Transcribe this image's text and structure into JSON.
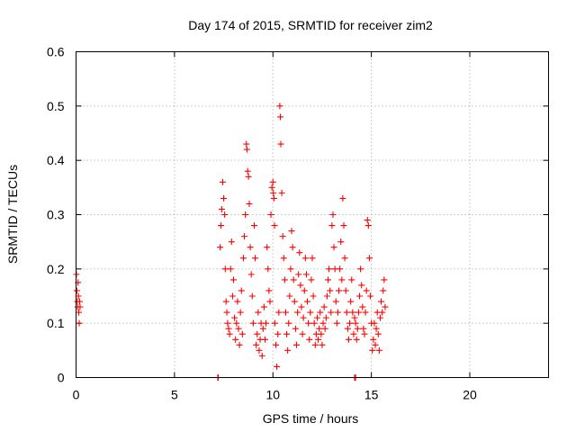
{
  "chart_data": {
    "type": "scatter",
    "title": "Day 174 of 2015, SRMTID for receiver zim2",
    "xlabel": "GPS time / hours",
    "ylabel": "SRMTID / TECUs",
    "xlim": [
      0,
      24
    ],
    "ylim": [
      0,
      0.6
    ],
    "xticks": [
      0,
      5,
      10,
      15,
      20
    ],
    "yticks": [
      0,
      0.1,
      0.2,
      0.3,
      0.4,
      0.5,
      0.6
    ],
    "xtick_labels": [
      "0",
      "5",
      "10",
      "15",
      "20"
    ],
    "ytick_labels": [
      "0",
      "0.1",
      "0.2",
      "0.3",
      "0.4",
      "0.5",
      "0.6"
    ],
    "grid": true,
    "marker": "plus",
    "color": "#ff0000",
    "series": [
      {
        "points": [
          [
            0.02,
            0.19
          ],
          [
            0.04,
            0.16
          ],
          [
            0.06,
            0.14
          ],
          [
            0.08,
            0.13
          ],
          [
            0.1,
            0.175
          ],
          [
            0.12,
            0.15
          ],
          [
            0.14,
            0.12
          ],
          [
            0.16,
            0.1
          ],
          [
            0.18,
            0.14
          ],
          [
            0.2,
            0.13
          ],
          [
            7.2,
            0.0
          ],
          [
            7.22,
            0.0
          ],
          [
            14.15,
            0.0
          ],
          [
            14.2,
            0.0
          ],
          [
            7.32,
            0.24
          ],
          [
            7.36,
            0.28
          ],
          [
            7.4,
            0.31
          ],
          [
            7.45,
            0.36
          ],
          [
            7.5,
            0.33
          ],
          [
            7.55,
            0.3
          ],
          [
            7.58,
            0.2
          ],
          [
            7.62,
            0.14
          ],
          [
            7.66,
            0.12
          ],
          [
            7.7,
            0.1
          ],
          [
            7.75,
            0.09
          ],
          [
            7.8,
            0.08
          ],
          [
            7.85,
            0.2
          ],
          [
            7.9,
            0.25
          ],
          [
            7.95,
            0.15
          ],
          [
            8.0,
            0.18
          ],
          [
            8.05,
            0.11
          ],
          [
            8.1,
            0.07
          ],
          [
            8.15,
            0.1
          ],
          [
            8.2,
            0.14
          ],
          [
            8.25,
            0.09
          ],
          [
            8.3,
            0.06
          ],
          [
            8.35,
            0.12
          ],
          [
            8.4,
            0.16
          ],
          [
            8.45,
            0.08
          ],
          [
            8.5,
            0.22
          ],
          [
            8.55,
            0.26
          ],
          [
            8.6,
            0.3
          ],
          [
            8.65,
            0.43
          ],
          [
            8.68,
            0.42
          ],
          [
            8.72,
            0.38
          ],
          [
            8.76,
            0.37
          ],
          [
            8.8,
            0.32
          ],
          [
            8.85,
            0.24
          ],
          [
            8.9,
            0.19
          ],
          [
            8.95,
            0.15
          ],
          [
            9.0,
            0.1
          ],
          [
            9.05,
            0.28
          ],
          [
            9.1,
            0.22
          ],
          [
            9.15,
            0.06
          ],
          [
            9.2,
            0.08
          ],
          [
            9.25,
            0.12
          ],
          [
            9.3,
            0.05
          ],
          [
            9.35,
            0.07
          ],
          [
            9.4,
            0.1
          ],
          [
            9.45,
            0.04
          ],
          [
            9.5,
            0.09
          ],
          [
            9.55,
            0.13
          ],
          [
            9.6,
            0.07
          ],
          [
            9.65,
            0.1
          ],
          [
            9.7,
            0.24
          ],
          [
            9.75,
            0.2
          ],
          [
            9.8,
            0.16
          ],
          [
            9.85,
            0.14
          ],
          [
            9.9,
            0.3
          ],
          [
            9.95,
            0.35
          ],
          [
            10.0,
            0.36
          ],
          [
            10.02,
            0.34
          ],
          [
            10.05,
            0.33
          ],
          [
            10.08,
            0.28
          ],
          [
            10.1,
            0.1
          ],
          [
            10.15,
            0.06
          ],
          [
            10.2,
            0.02
          ],
          [
            10.25,
            0.08
          ],
          [
            10.3,
            0.12
          ],
          [
            10.35,
            0.5
          ],
          [
            10.38,
            0.48
          ],
          [
            10.4,
            0.43
          ],
          [
            10.45,
            0.34
          ],
          [
            10.5,
            0.26
          ],
          [
            10.55,
            0.22
          ],
          [
            10.6,
            0.18
          ],
          [
            10.65,
            0.12
          ],
          [
            10.7,
            0.08
          ],
          [
            10.75,
            0.05
          ],
          [
            10.8,
            0.1
          ],
          [
            10.85,
            0.15
          ],
          [
            10.9,
            0.2
          ],
          [
            10.95,
            0.27
          ],
          [
            11.0,
            0.24
          ],
          [
            11.05,
            0.18
          ],
          [
            11.1,
            0.14
          ],
          [
            11.15,
            0.09
          ],
          [
            11.2,
            0.06
          ],
          [
            11.25,
            0.12
          ],
          [
            11.3,
            0.19
          ],
          [
            11.35,
            0.23
          ],
          [
            11.4,
            0.17
          ],
          [
            11.45,
            0.13
          ],
          [
            11.5,
            0.08
          ],
          [
            11.55,
            0.11
          ],
          [
            11.6,
            0.16
          ],
          [
            11.65,
            0.22
          ],
          [
            11.7,
            0.19
          ],
          [
            11.75,
            0.14
          ],
          [
            11.8,
            0.1
          ],
          [
            11.85,
            0.07
          ],
          [
            11.9,
            0.12
          ],
          [
            11.95,
            0.18
          ],
          [
            12.0,
            0.22
          ],
          [
            12.05,
            0.15
          ],
          [
            12.1,
            0.1
          ],
          [
            12.15,
            0.06
          ],
          [
            12.2,
            0.08
          ],
          [
            12.25,
            0.11
          ],
          [
            12.3,
            0.07
          ],
          [
            12.35,
            0.09
          ],
          [
            12.4,
            0.12
          ],
          [
            12.45,
            0.08
          ],
          [
            12.5,
            0.06
          ],
          [
            12.55,
            0.1
          ],
          [
            12.6,
            0.13
          ],
          [
            12.65,
            0.09
          ],
          [
            12.7,
            0.11
          ],
          [
            12.75,
            0.15
          ],
          [
            12.8,
            0.18
          ],
          [
            12.85,
            0.2
          ],
          [
            12.9,
            0.16
          ],
          [
            12.95,
            0.12
          ],
          [
            13.0,
            0.28
          ],
          [
            13.05,
            0.3
          ],
          [
            13.1,
            0.24
          ],
          [
            13.15,
            0.2
          ],
          [
            13.2,
            0.14
          ],
          [
            13.25,
            0.1
          ],
          [
            13.3,
            0.12
          ],
          [
            13.35,
            0.16
          ],
          [
            13.4,
            0.2
          ],
          [
            13.45,
            0.25
          ],
          [
            13.5,
            0.18
          ],
          [
            13.55,
            0.33
          ],
          [
            13.6,
            0.28
          ],
          [
            13.65,
            0.22
          ],
          [
            13.7,
            0.16
          ],
          [
            13.75,
            0.12
          ],
          [
            13.8,
            0.09
          ],
          [
            13.85,
            0.07
          ],
          [
            13.9,
            0.1
          ],
          [
            13.95,
            0.14
          ],
          [
            14.0,
            0.18
          ],
          [
            14.05,
            0.12
          ],
          [
            14.1,
            0.08
          ],
          [
            14.15,
            0.11
          ],
          [
            14.2,
            0.1
          ],
          [
            14.25,
            0.07
          ],
          [
            14.3,
            0.09
          ],
          [
            14.35,
            0.12
          ],
          [
            14.4,
            0.15
          ],
          [
            14.45,
            0.2
          ],
          [
            14.5,
            0.17
          ],
          [
            14.55,
            0.13
          ],
          [
            14.6,
            0.09
          ],
          [
            14.65,
            0.08
          ],
          [
            14.7,
            0.12
          ],
          [
            14.75,
            0.16
          ],
          [
            14.8,
            0.29
          ],
          [
            14.85,
            0.28
          ],
          [
            14.9,
            0.22
          ],
          [
            14.95,
            0.15
          ],
          [
            15.0,
            0.1
          ],
          [
            15.05,
            0.05
          ],
          [
            15.1,
            0.07
          ],
          [
            15.15,
            0.1
          ],
          [
            15.2,
            0.06
          ],
          [
            15.25,
            0.09
          ],
          [
            15.3,
            0.12
          ],
          [
            15.35,
            0.08
          ],
          [
            15.4,
            0.05
          ],
          [
            15.45,
            0.11
          ],
          [
            15.5,
            0.14
          ],
          [
            15.55,
            0.12
          ],
          [
            15.6,
            0.16
          ],
          [
            15.65,
            0.18
          ],
          [
            15.7,
            0.13
          ]
        ]
      }
    ]
  }
}
